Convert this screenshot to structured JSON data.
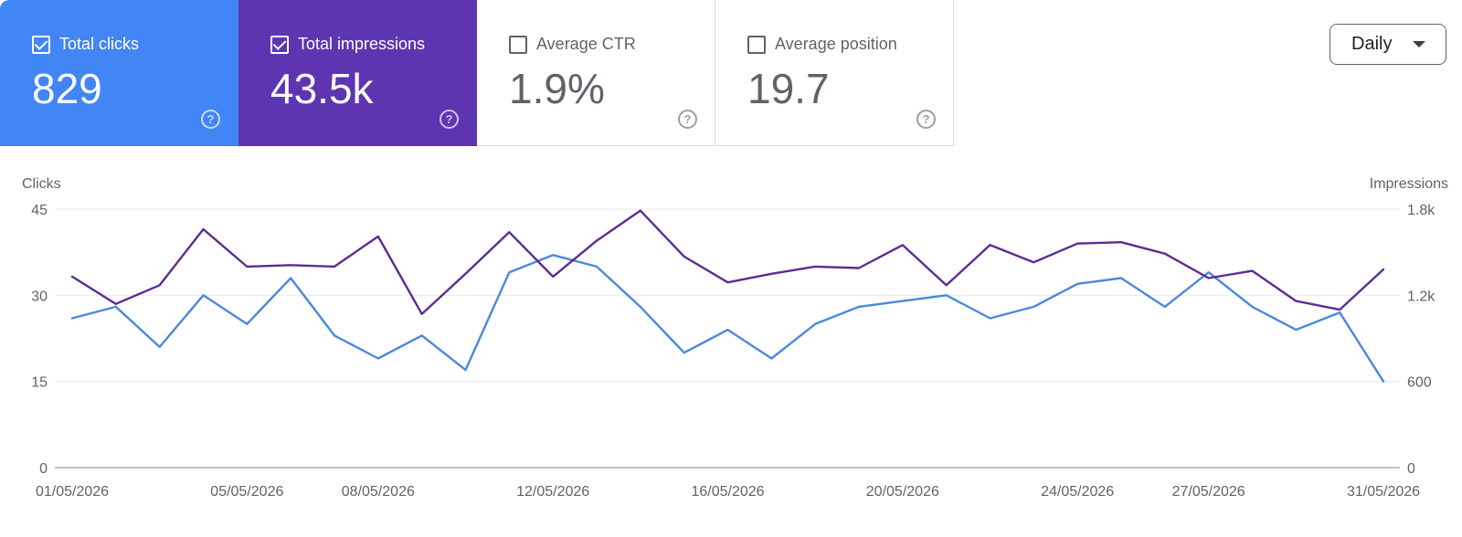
{
  "cards": [
    {
      "label": "Total clicks",
      "value": "829",
      "checked": true,
      "color": "#4285f4"
    },
    {
      "label": "Total impressions",
      "value": "43.5k",
      "checked": true,
      "color": "#5e35b1"
    },
    {
      "label": "Average CTR",
      "value": "1.9%",
      "checked": false,
      "color": "#ffffff"
    },
    {
      "label": "Average position",
      "value": "19.7",
      "checked": false,
      "color": "#ffffff"
    }
  ],
  "help_glyph": "?",
  "dropdown": {
    "label": "Daily"
  },
  "chart_data": {
    "type": "line",
    "y_left_label": "Clicks",
    "y_right_label": "Impressions",
    "y_left_ticks": [
      "45",
      "30",
      "15",
      "0"
    ],
    "y_right_ticks": [
      "1.8k",
      "1.2k",
      "600",
      "0"
    ],
    "y_left_range": [
      0,
      45
    ],
    "y_right_range": [
      0,
      1800
    ],
    "x_tick_labels": [
      {
        "index": 0,
        "label": "01/05/2026"
      },
      {
        "index": 4,
        "label": "05/05/2026"
      },
      {
        "index": 7,
        "label": "08/05/2026"
      },
      {
        "index": 11,
        "label": "12/05/2026"
      },
      {
        "index": 15,
        "label": "16/05/2026"
      },
      {
        "index": 19,
        "label": "20/05/2026"
      },
      {
        "index": 23,
        "label": "24/05/2026"
      },
      {
        "index": 26,
        "label": "27/05/2026"
      },
      {
        "index": 30,
        "label": "31/05/2026"
      }
    ],
    "series": [
      {
        "name": "Clicks",
        "axis": "left",
        "color": "#4a89dc",
        "values": [
          26,
          28,
          21,
          30,
          25,
          33,
          23,
          19,
          23,
          17,
          34,
          37,
          35,
          28,
          20,
          24,
          19,
          25,
          28,
          29,
          30,
          26,
          28,
          32,
          33,
          28,
          34,
          28,
          24,
          27,
          15
        ]
      },
      {
        "name": "Impressions",
        "axis": "right",
        "color": "#5c2d91",
        "values": [
          1330,
          1140,
          1270,
          1660,
          1400,
          1410,
          1400,
          1610,
          1070,
          1350,
          1640,
          1330,
          1580,
          1790,
          1470,
          1290,
          1350,
          1400,
          1390,
          1550,
          1270,
          1550,
          1430,
          1560,
          1570,
          1490,
          1320,
          1370,
          1160,
          1100,
          1380
        ]
      }
    ]
  }
}
